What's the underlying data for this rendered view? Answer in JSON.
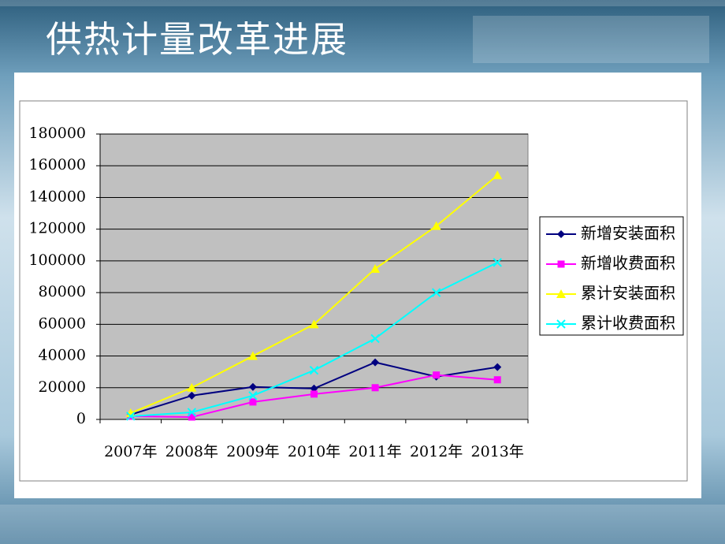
{
  "slide": {
    "title": "供热计量改革进展"
  },
  "chart_data": {
    "type": "line",
    "categories": [
      "2007年",
      "2008年",
      "2009年",
      "2010年",
      "2011年",
      "2012年",
      "2013年"
    ],
    "series": [
      {
        "name": "新增安装面积",
        "color": "#000080",
        "marker": "diamond",
        "values": [
          3000,
          15000,
          20500,
          19500,
          36000,
          27000,
          33000
        ]
      },
      {
        "name": "新增收费面积",
        "color": "#ff00ff",
        "marker": "square",
        "values": [
          2000,
          1500,
          11000,
          16000,
          20000,
          28000,
          25000
        ]
      },
      {
        "name": "累计安装面积",
        "color": "#ffff00",
        "marker": "triangle",
        "values": [
          4000,
          20000,
          40000,
          60000,
          95000,
          122000,
          154000
        ]
      },
      {
        "name": "累计收费面积",
        "color": "#00ffff",
        "marker": "x",
        "values": [
          2000,
          4500,
          15000,
          31000,
          51000,
          80000,
          99000
        ]
      }
    ],
    "ylim": [
      0,
      180000
    ],
    "yticks": [
      0,
      20000,
      40000,
      60000,
      80000,
      100000,
      120000,
      140000,
      160000,
      180000
    ],
    "grid": true,
    "plot_background": "#c0c0c0",
    "legend": "right"
  }
}
